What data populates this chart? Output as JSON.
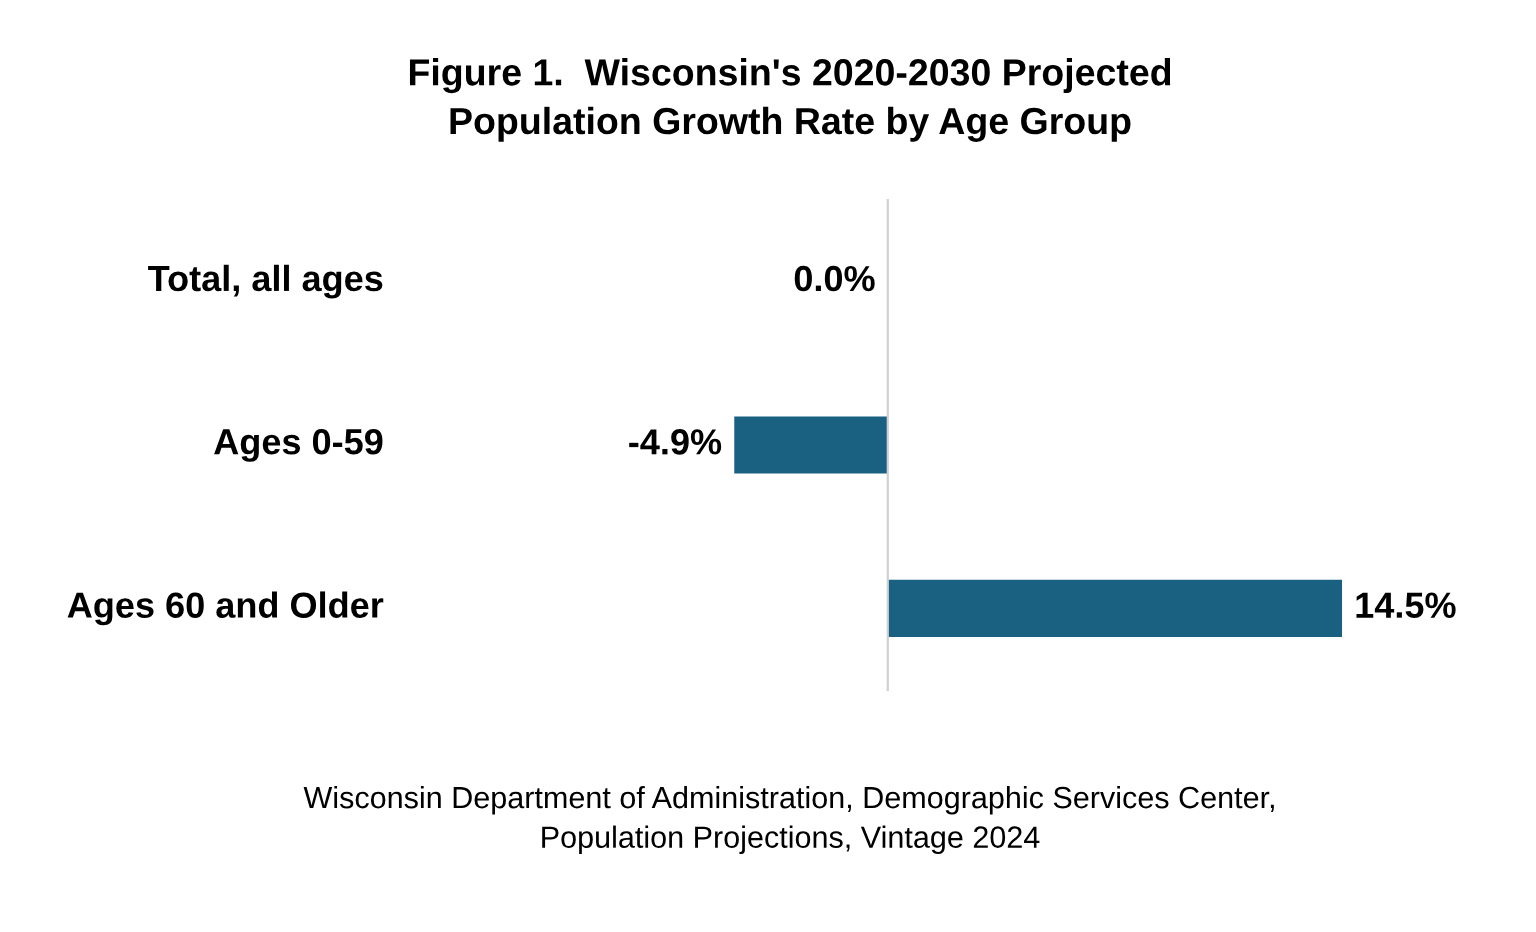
{
  "chart_data": {
    "type": "bar",
    "orientation": "horizontal",
    "title": "Figure 1.  Wisconsin's 2020-2030 Projected\nPopulation Growth Rate by Age Group",
    "categories": [
      "Total, all ages",
      "Ages 0-59",
      "Ages 60 and Older"
    ],
    "values": [
      0.0,
      -4.9,
      14.5
    ],
    "value_labels": [
      "0.0%",
      "-4.9%",
      "14.5%"
    ],
    "color": "#1a6080",
    "annotations": [
      "Wisconsin Department of Administration, Demographic Services Center,\nPopulation Projections, Vintage 2024"
    ]
  }
}
